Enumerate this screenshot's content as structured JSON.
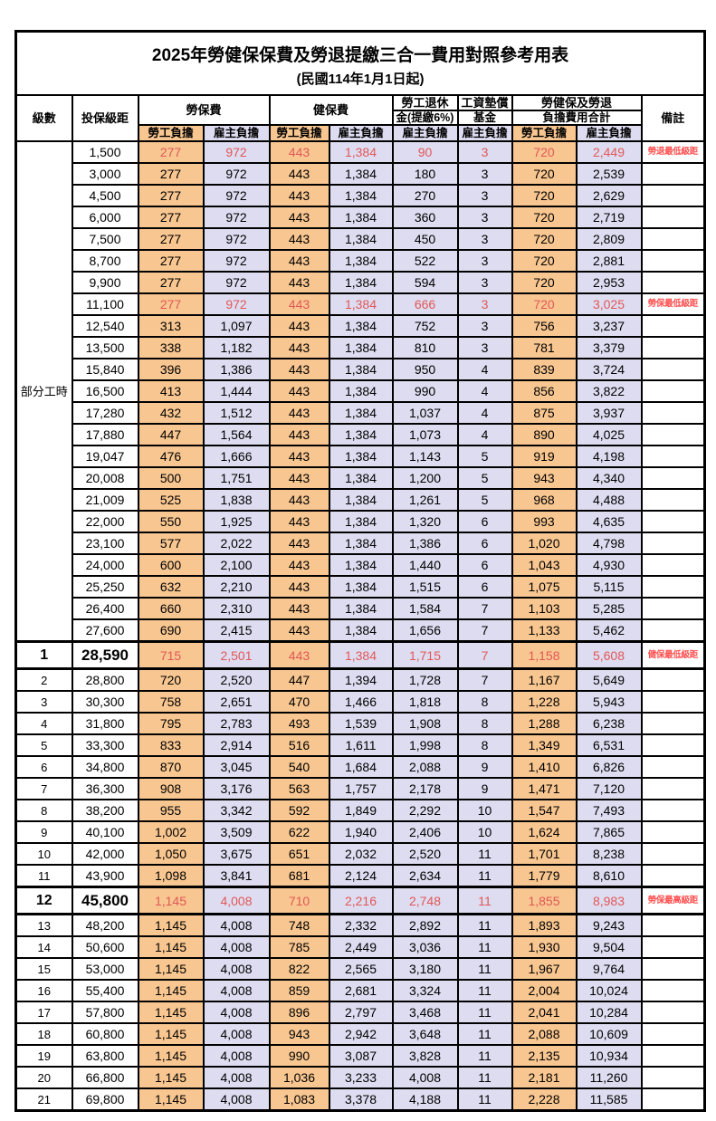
{
  "title": "2025年勞健保保費及勞退提繳三合一費用對照參考用表",
  "subtitle": "(民國114年1月1日起)",
  "columns": {
    "level": "級數",
    "salary": "投保級距",
    "labor_insurance": "勞保費",
    "health_insurance": "健保費",
    "pension_line1": "勞工退休",
    "pension_line2": "金(提繳6%)",
    "wage_fund_line1": "工資墊償",
    "wage_fund_line2": "基金",
    "total_line1": "勞健保及勞退",
    "total_line2": "負擔費用合計",
    "note": "備註",
    "employee_burden": "勞工負擔",
    "employer_burden": "雇主負擔"
  },
  "part_time_label": "部分工時",
  "part_time_rowspan": 23,
  "colors": {
    "employee_column": "#F8C690",
    "employer_column": "#DEDCF0",
    "highlight_value_red": "#E05858",
    "note_red": "#FF5050",
    "border_black": "#000000"
  },
  "row_fields": [
    "level",
    "salary",
    "labor_employee",
    "labor_employer",
    "health_employee",
    "health_employer",
    "pension_employer",
    "wage_fund_employer",
    "total_employee",
    "total_employer",
    "note",
    "is_red",
    "is_big"
  ],
  "rows": [
    [
      "",
      "1,500",
      "277",
      "972",
      "443",
      "1,384",
      "90",
      "3",
      "720",
      "2,449",
      "勞退最低級距",
      1,
      0
    ],
    [
      "",
      "3,000",
      "277",
      "972",
      "443",
      "1,384",
      "180",
      "3",
      "720",
      "2,539",
      "",
      0,
      0
    ],
    [
      "",
      "4,500",
      "277",
      "972",
      "443",
      "1,384",
      "270",
      "3",
      "720",
      "2,629",
      "",
      0,
      0
    ],
    [
      "",
      "6,000",
      "277",
      "972",
      "443",
      "1,384",
      "360",
      "3",
      "720",
      "2,719",
      "",
      0,
      0
    ],
    [
      "",
      "7,500",
      "277",
      "972",
      "443",
      "1,384",
      "450",
      "3",
      "720",
      "2,809",
      "",
      0,
      0
    ],
    [
      "",
      "8,700",
      "277",
      "972",
      "443",
      "1,384",
      "522",
      "3",
      "720",
      "2,881",
      "",
      0,
      0
    ],
    [
      "",
      "9,900",
      "277",
      "972",
      "443",
      "1,384",
      "594",
      "3",
      "720",
      "2,953",
      "",
      0,
      0
    ],
    [
      "",
      "11,100",
      "277",
      "972",
      "443",
      "1,384",
      "666",
      "3",
      "720",
      "3,025",
      "勞保最低級距",
      1,
      0
    ],
    [
      "",
      "12,540",
      "313",
      "1,097",
      "443",
      "1,384",
      "752",
      "3",
      "756",
      "3,237",
      "",
      0,
      0
    ],
    [
      "",
      "13,500",
      "338",
      "1,182",
      "443",
      "1,384",
      "810",
      "3",
      "781",
      "3,379",
      "",
      0,
      0
    ],
    [
      "",
      "15,840",
      "396",
      "1,386",
      "443",
      "1,384",
      "950",
      "4",
      "839",
      "3,724",
      "",
      0,
      0
    ],
    [
      "",
      "16,500",
      "413",
      "1,444",
      "443",
      "1,384",
      "990",
      "4",
      "856",
      "3,822",
      "",
      0,
      0
    ],
    [
      "",
      "17,280",
      "432",
      "1,512",
      "443",
      "1,384",
      "1,037",
      "4",
      "875",
      "3,937",
      "",
      0,
      0
    ],
    [
      "",
      "17,880",
      "447",
      "1,564",
      "443",
      "1,384",
      "1,073",
      "4",
      "890",
      "4,025",
      "",
      0,
      0
    ],
    [
      "",
      "19,047",
      "476",
      "1,666",
      "443",
      "1,384",
      "1,143",
      "5",
      "919",
      "4,198",
      "",
      0,
      0
    ],
    [
      "",
      "20,008",
      "500",
      "1,751",
      "443",
      "1,384",
      "1,200",
      "5",
      "943",
      "4,340",
      "",
      0,
      0
    ],
    [
      "",
      "21,009",
      "525",
      "1,838",
      "443",
      "1,384",
      "1,261",
      "5",
      "968",
      "4,488",
      "",
      0,
      0
    ],
    [
      "",
      "22,000",
      "550",
      "1,925",
      "443",
      "1,384",
      "1,320",
      "6",
      "993",
      "4,635",
      "",
      0,
      0
    ],
    [
      "",
      "23,100",
      "577",
      "2,022",
      "443",
      "1,384",
      "1,386",
      "6",
      "1,020",
      "4,798",
      "",
      0,
      0
    ],
    [
      "",
      "24,000",
      "600",
      "2,100",
      "443",
      "1,384",
      "1,440",
      "6",
      "1,043",
      "4,930",
      "",
      0,
      0
    ],
    [
      "",
      "25,250",
      "632",
      "2,210",
      "443",
      "1,384",
      "1,515",
      "6",
      "1,075",
      "5,115",
      "",
      0,
      0
    ],
    [
      "",
      "26,400",
      "660",
      "2,310",
      "443",
      "1,384",
      "1,584",
      "7",
      "1,103",
      "5,285",
      "",
      0,
      0
    ],
    [
      "",
      "27,600",
      "690",
      "2,415",
      "443",
      "1,384",
      "1,656",
      "7",
      "1,133",
      "5,462",
      "",
      0,
      0
    ],
    [
      "1",
      "28,590",
      "715",
      "2,501",
      "443",
      "1,384",
      "1,715",
      "7",
      "1,158",
      "5,608",
      "健保最低級距",
      1,
      1
    ],
    [
      "2",
      "28,800",
      "720",
      "2,520",
      "447",
      "1,394",
      "1,728",
      "7",
      "1,167",
      "5,649",
      "",
      0,
      0
    ],
    [
      "3",
      "30,300",
      "758",
      "2,651",
      "470",
      "1,466",
      "1,818",
      "8",
      "1,228",
      "5,943",
      "",
      0,
      0
    ],
    [
      "4",
      "31,800",
      "795",
      "2,783",
      "493",
      "1,539",
      "1,908",
      "8",
      "1,288",
      "6,238",
      "",
      0,
      0
    ],
    [
      "5",
      "33,300",
      "833",
      "2,914",
      "516",
      "1,611",
      "1,998",
      "8",
      "1,349",
      "6,531",
      "",
      0,
      0
    ],
    [
      "6",
      "34,800",
      "870",
      "3,045",
      "540",
      "1,684",
      "2,088",
      "9",
      "1,410",
      "6,826",
      "",
      0,
      0
    ],
    [
      "7",
      "36,300",
      "908",
      "3,176",
      "563",
      "1,757",
      "2,178",
      "9",
      "1,471",
      "7,120",
      "",
      0,
      0
    ],
    [
      "8",
      "38,200",
      "955",
      "3,342",
      "592",
      "1,849",
      "2,292",
      "10",
      "1,547",
      "7,493",
      "",
      0,
      0
    ],
    [
      "9",
      "40,100",
      "1,002",
      "3,509",
      "622",
      "1,940",
      "2,406",
      "10",
      "1,624",
      "7,865",
      "",
      0,
      0
    ],
    [
      "10",
      "42,000",
      "1,050",
      "3,675",
      "651",
      "2,032",
      "2,520",
      "11",
      "1,701",
      "8,238",
      "",
      0,
      0
    ],
    [
      "11",
      "43,900",
      "1,098",
      "3,841",
      "681",
      "2,124",
      "2,634",
      "11",
      "1,779",
      "8,610",
      "",
      0,
      0
    ],
    [
      "12",
      "45,800",
      "1,145",
      "4,008",
      "710",
      "2,216",
      "2,748",
      "11",
      "1,855",
      "8,983",
      "勞保最高級距",
      1,
      1
    ],
    [
      "13",
      "48,200",
      "1,145",
      "4,008",
      "748",
      "2,332",
      "2,892",
      "11",
      "1,893",
      "9,243",
      "",
      0,
      0
    ],
    [
      "14",
      "50,600",
      "1,145",
      "4,008",
      "785",
      "2,449",
      "3,036",
      "11",
      "1,930",
      "9,504",
      "",
      0,
      0
    ],
    [
      "15",
      "53,000",
      "1,145",
      "4,008",
      "822",
      "2,565",
      "3,180",
      "11",
      "1,967",
      "9,764",
      "",
      0,
      0
    ],
    [
      "16",
      "55,400",
      "1,145",
      "4,008",
      "859",
      "2,681",
      "3,324",
      "11",
      "2,004",
      "10,024",
      "",
      0,
      0
    ],
    [
      "17",
      "57,800",
      "1,145",
      "4,008",
      "896",
      "2,797",
      "3,468",
      "11",
      "2,041",
      "10,284",
      "",
      0,
      0
    ],
    [
      "18",
      "60,800",
      "1,145",
      "4,008",
      "943",
      "2,942",
      "3,648",
      "11",
      "2,088",
      "10,609",
      "",
      0,
      0
    ],
    [
      "19",
      "63,800",
      "1,145",
      "4,008",
      "990",
      "3,087",
      "3,828",
      "11",
      "2,135",
      "10,934",
      "",
      0,
      0
    ],
    [
      "20",
      "66,800",
      "1,145",
      "4,008",
      "1,036",
      "3,233",
      "4,008",
      "11",
      "2,181",
      "11,260",
      "",
      0,
      0
    ],
    [
      "21",
      "69,800",
      "1,145",
      "4,008",
      "1,083",
      "3,378",
      "4,188",
      "11",
      "2,228",
      "11,585",
      "",
      0,
      0
    ]
  ]
}
